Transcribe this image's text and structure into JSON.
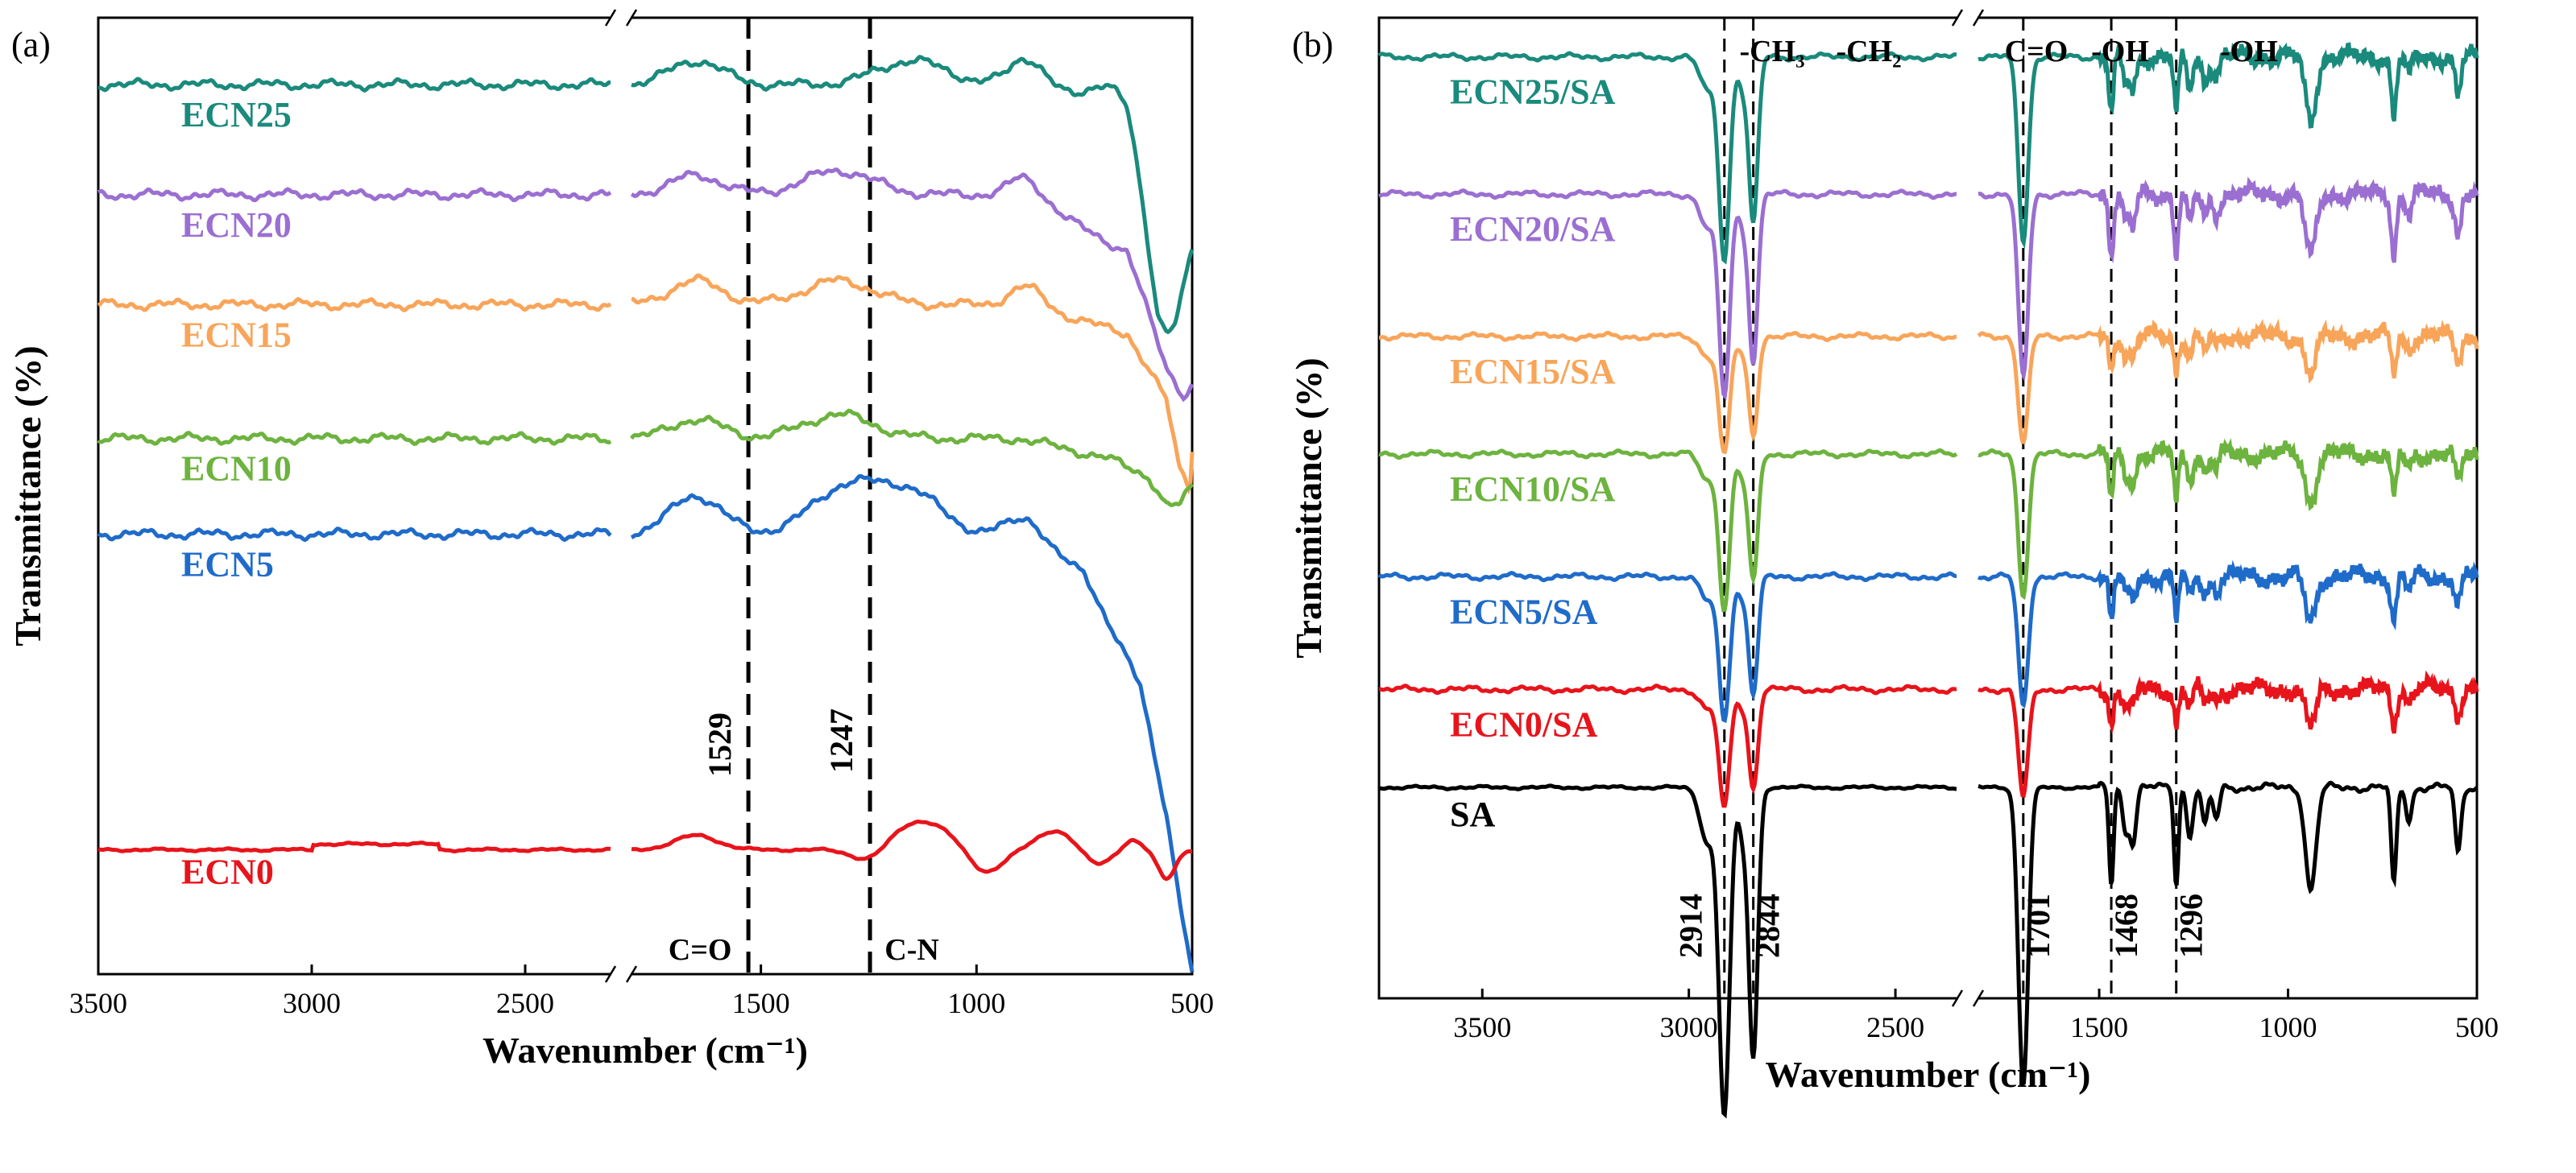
{
  "figure": {
    "axis_color": "#000000",
    "background": "#ffffff"
  },
  "chart_data": [
    {
      "type": "line",
      "panel_label": "(a)",
      "xlabel": "Wavenumber (cm⁻¹)",
      "ylabel": "Transmittance (%)",
      "x_ticks": [
        "3500",
        "3000",
        "2500",
        "1500",
        "1000",
        "500"
      ],
      "x_segments": [
        [
          3500,
          2300
        ],
        [
          1800,
          500
        ]
      ],
      "x_reversed": true,
      "y_range": [
        0,
        100
      ],
      "grid": false,
      "reference_lines": [
        {
          "x": 1529,
          "label": "1529",
          "group": "C=O"
        },
        {
          "x": 1247,
          "label": "1247",
          "group": "C-N"
        }
      ],
      "series": [
        {
          "name": "ECN25",
          "color": "#1a8a7c",
          "baseline": 93,
          "features": [
            [
              1650,
              2.5,
              60
            ],
            [
              1150,
              2.5,
              80
            ],
            [
              880,
              3,
              40
            ],
            [
              700,
              2.5,
              40
            ],
            [
              560,
              -11,
              40
            ]
          ],
          "tail": [
            [
              900,
              0
            ],
            [
              650,
              -3
            ],
            [
              580,
              -14
            ],
            [
              540,
              -15
            ],
            [
              500,
              -14
            ]
          ]
        },
        {
          "name": "ECN20",
          "color": "#9b6fd1",
          "baseline": 81.5,
          "features": [
            [
              1650,
              2,
              60
            ],
            [
              1320,
              2.5,
              80
            ],
            [
              880,
              2,
              40
            ]
          ],
          "tail": [
            [
              900,
              0
            ],
            [
              650,
              -6
            ],
            [
              560,
              -18
            ],
            [
              520,
              -21
            ],
            [
              500,
              -20
            ]
          ]
        },
        {
          "name": "ECN15",
          "color": "#f8a55a",
          "baseline": 70,
          "features": [
            [
              1650,
              2.5,
              60
            ],
            [
              1320,
              2.5,
              80
            ],
            [
              880,
              2,
              40
            ]
          ],
          "tail": [
            [
              900,
              0
            ],
            [
              650,
              -3
            ],
            [
              560,
              -10
            ],
            [
              530,
              -17
            ],
            [
              505,
              -19
            ],
            [
              500,
              -15
            ]
          ]
        },
        {
          "name": "ECN10",
          "color": "#6db33f",
          "baseline": 56,
          "features": [
            [
              1650,
              2,
              60
            ],
            [
              1320,
              2.5,
              80
            ]
          ],
          "tail": [
            [
              900,
              0
            ],
            [
              700,
              -2
            ],
            [
              600,
              -4
            ],
            [
              560,
              -7
            ],
            [
              530,
              -7
            ],
            [
              500,
              -5
            ]
          ]
        },
        {
          "name": "ECN5",
          "color": "#1f6bc9",
          "baseline": 46,
          "features": [
            [
              1650,
              4,
              60
            ],
            [
              1300,
              5,
              80
            ],
            [
              1150,
              4,
              70
            ],
            [
              880,
              3,
              40
            ]
          ],
          "tail": [
            [
              950,
              0
            ],
            [
              750,
              -4
            ],
            [
              620,
              -16
            ],
            [
              560,
              -29
            ],
            [
              530,
              -38
            ],
            [
              500,
              -46
            ]
          ]
        },
        {
          "name": "ECN0",
          "color": "#e8141b",
          "baseline": 13,
          "features": [
            [
              1650,
              1.5,
              50
            ],
            [
              1247,
              -1.5,
              40
            ],
            [
              1130,
              3,
              70
            ],
            [
              980,
              -2.5,
              40
            ],
            [
              820,
              2,
              40
            ],
            [
              720,
              -1.5,
              30
            ],
            [
              640,
              1,
              20
            ],
            [
              560,
              -3,
              20
            ]
          ],
          "tail": []
        }
      ]
    },
    {
      "type": "line",
      "panel_label": "(b)",
      "xlabel": "Wavenumber (cm⁻¹)",
      "ylabel": "Transmittance (%)",
      "x_ticks": [
        "3500",
        "3000",
        "2500",
        "1500",
        "1000",
        "500"
      ],
      "x_segments": [
        [
          3750,
          2350
        ],
        [
          1820,
          500
        ]
      ],
      "x_reversed": true,
      "y_range": [
        0,
        100
      ],
      "grid": false,
      "reference_lines": [
        {
          "x": 2914,
          "label": "2914",
          "group": "-CH₃"
        },
        {
          "x": 2844,
          "label": "2844",
          "group": "-CH₂"
        },
        {
          "x": 1701,
          "label": "1701",
          "group": "C=O"
        },
        {
          "x": 1468,
          "label": "1468",
          "group": "-OH"
        },
        {
          "x": 1296,
          "label": "1296",
          "group": "-OH"
        }
      ],
      "group_labels": [
        "-CH₃",
        "-CH₂",
        "C=O",
        "-OH",
        "-OH"
      ],
      "series": [
        {
          "name": "ECN25/SA",
          "color": "#1a8a7c",
          "baseline": 96,
          "scale": 0.34
        },
        {
          "name": "ECN20/SA",
          "color": "#9b6fd1",
          "baseline": 82,
          "scale": 0.34
        },
        {
          "name": "ECN15/SA",
          "color": "#f8a55a",
          "baseline": 67.5,
          "scale": 0.2
        },
        {
          "name": "ECN10/SA",
          "color": "#6db33f",
          "baseline": 55.5,
          "scale": 0.26
        },
        {
          "name": "ECN5/SA",
          "color": "#1f6bc9",
          "baseline": 43,
          "scale": 0.24
        },
        {
          "name": "ECN0/SA",
          "color": "#e8141b",
          "baseline": 31.5,
          "scale": 0.2
        },
        {
          "name": "SA",
          "color": "#000000",
          "baseline": 21.5,
          "scale": 0.55
        }
      ],
      "sa_bands": [
        [
          2955,
          10,
          18
        ],
        [
          2914,
          60,
          13
        ],
        [
          2870,
          8,
          10
        ],
        [
          2844,
          50,
          11
        ],
        [
          1701,
          55,
          13
        ],
        [
          1468,
          18,
          6
        ],
        [
          1430,
          8,
          8
        ],
        [
          1410,
          10,
          8
        ],
        [
          1296,
          18,
          6
        ],
        [
          1260,
          9,
          8
        ],
        [
          1220,
          7,
          8
        ],
        [
          1190,
          6,
          8
        ],
        [
          940,
          19,
          14
        ],
        [
          720,
          18,
          7
        ],
        [
          680,
          6,
          8
        ],
        [
          550,
          12,
          8
        ]
      ]
    }
  ]
}
